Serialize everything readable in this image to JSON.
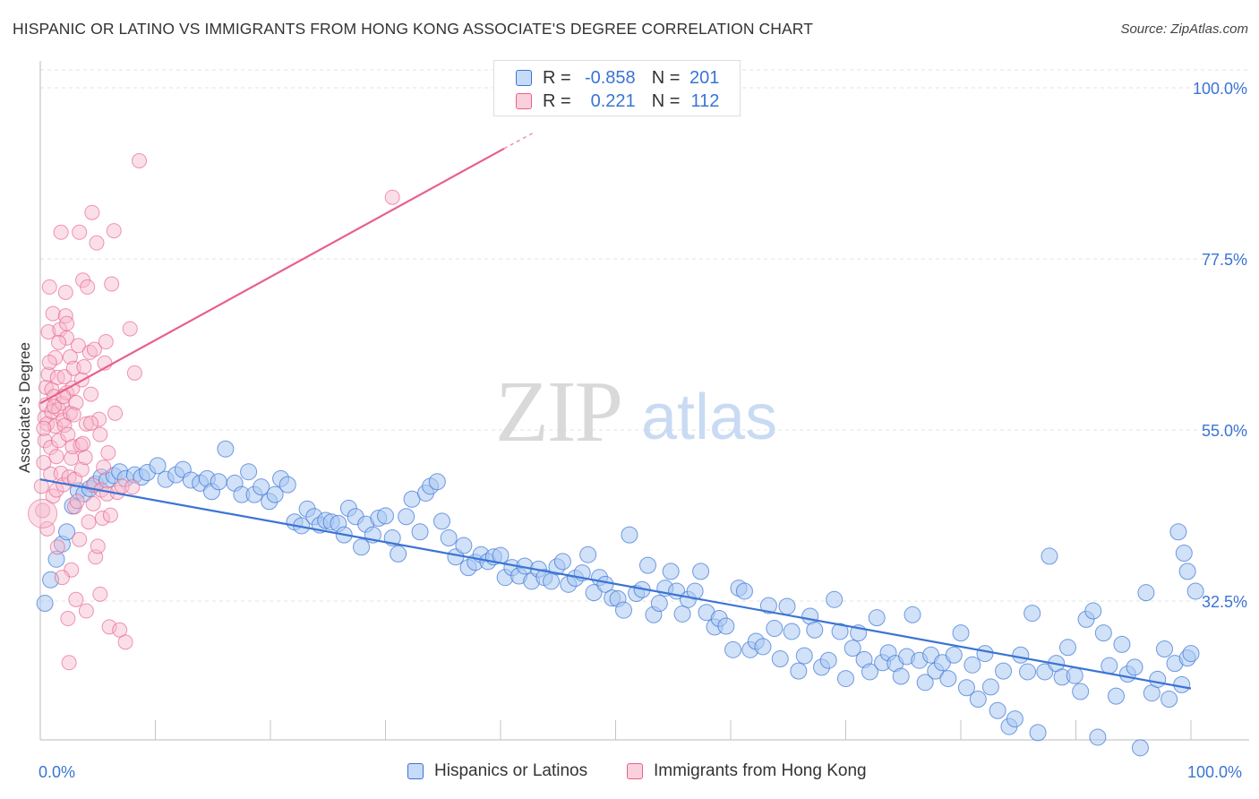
{
  "title": "HISPANIC OR LATINO VS IMMIGRANTS FROM HONG KONG ASSOCIATE'S DEGREE CORRELATION CHART",
  "source": "Source: ZipAtlas.com",
  "watermark": {
    "zip": "ZIP",
    "atlas": "atlas"
  },
  "colors": {
    "blue": "#3a74d4",
    "blue_fill": "#aac8f2",
    "pink": "#e8608a",
    "pink_fill": "#f6b7cb",
    "tick_text": "#3a74d4"
  },
  "legend": {
    "rows": [
      {
        "r_label": "R =",
        "r_value": "-0.858",
        "n_label": "N =",
        "n_value": "201"
      },
      {
        "r_label": "R =",
        "r_value": "0.221",
        "n_label": "N =",
        "n_value": "112"
      }
    ]
  },
  "bottom_legend": [
    "Hispanics or Latinos",
    "Immigrants from Hong Kong"
  ],
  "chart_data": {
    "type": "scatter",
    "ylabel": "Associate's Degree",
    "xlim": [
      0,
      100
    ],
    "ylim": [
      10,
      100
    ],
    "x_tick_labels": [
      "0.0%",
      "100.0%"
    ],
    "y_ticks": [
      {
        "value": 100.0,
        "label": "100.0%"
      },
      {
        "value": 77.5,
        "label": "77.5%"
      },
      {
        "value": 55.0,
        "label": "55.0%"
      },
      {
        "value": 32.5,
        "label": "32.5%"
      }
    ],
    "grid": true,
    "series": [
      {
        "name": "Hispanics or Latinos",
        "color": "#3a74d4",
        "trend": {
          "x": [
            0,
            100
          ],
          "y": [
            48.5,
            21.0
          ]
        },
        "points": [
          [
            0.4,
            32.2
          ],
          [
            0.9,
            35.3
          ],
          [
            1.4,
            38.0
          ],
          [
            1.9,
            40.0
          ],
          [
            2.3,
            41.6
          ],
          [
            2.8,
            45.0
          ],
          [
            3.3,
            47.0
          ],
          [
            3.8,
            46.6
          ],
          [
            4.3,
            47.3
          ],
          [
            4.8,
            47.9
          ],
          [
            5.3,
            48.8
          ],
          [
            5.8,
            48.4
          ],
          [
            6.4,
            49.0
          ],
          [
            6.9,
            49.5
          ],
          [
            7.4,
            48.6
          ],
          [
            8.2,
            49.1
          ],
          [
            8.8,
            48.8
          ],
          [
            9.3,
            49.4
          ],
          [
            10.2,
            50.3
          ],
          [
            10.9,
            48.5
          ],
          [
            11.8,
            49.1
          ],
          [
            12.4,
            49.8
          ],
          [
            13.1,
            48.4
          ],
          [
            13.9,
            48.0
          ],
          [
            14.5,
            48.6
          ],
          [
            14.9,
            46.9
          ],
          [
            15.5,
            48.2
          ],
          [
            16.1,
            52.5
          ],
          [
            16.9,
            48.0
          ],
          [
            17.5,
            46.5
          ],
          [
            18.1,
            49.5
          ],
          [
            18.6,
            46.5
          ],
          [
            19.2,
            47.5
          ],
          [
            19.9,
            45.6
          ],
          [
            20.4,
            46.5
          ],
          [
            20.9,
            48.6
          ],
          [
            21.5,
            47.8
          ],
          [
            22.1,
            42.9
          ],
          [
            22.7,
            42.4
          ],
          [
            23.2,
            44.6
          ],
          [
            23.8,
            43.6
          ],
          [
            24.3,
            42.5
          ],
          [
            24.8,
            43.1
          ],
          [
            25.3,
            42.9
          ],
          [
            25.9,
            42.7
          ],
          [
            26.4,
            41.2
          ],
          [
            26.8,
            44.7
          ],
          [
            27.4,
            43.6
          ],
          [
            27.9,
            39.6
          ],
          [
            28.3,
            42.6
          ],
          [
            28.9,
            41.2
          ],
          [
            29.4,
            43.4
          ],
          [
            30.0,
            43.7
          ],
          [
            30.6,
            40.8
          ],
          [
            31.1,
            38.7
          ],
          [
            31.8,
            43.6
          ],
          [
            32.3,
            45.9
          ],
          [
            33.0,
            41.6
          ],
          [
            33.5,
            46.7
          ],
          [
            33.9,
            47.6
          ],
          [
            34.5,
            48.2
          ],
          [
            34.9,
            43.0
          ],
          [
            35.5,
            40.8
          ],
          [
            36.1,
            38.3
          ],
          [
            36.8,
            39.8
          ],
          [
            37.2,
            36.9
          ],
          [
            37.8,
            37.6
          ],
          [
            38.3,
            38.6
          ],
          [
            38.9,
            37.7
          ],
          [
            39.4,
            38.3
          ],
          [
            40.0,
            38.5
          ],
          [
            40.4,
            35.6
          ],
          [
            41.0,
            36.9
          ],
          [
            41.6,
            35.8
          ],
          [
            42.1,
            37.1
          ],
          [
            42.7,
            35.1
          ],
          [
            43.3,
            36.7
          ],
          [
            43.8,
            35.6
          ],
          [
            44.4,
            35.1
          ],
          [
            44.9,
            37.0
          ],
          [
            45.4,
            37.7
          ],
          [
            45.9,
            34.7
          ],
          [
            46.5,
            35.5
          ],
          [
            47.1,
            36.2
          ],
          [
            47.6,
            38.6
          ],
          [
            48.1,
            33.6
          ],
          [
            48.6,
            35.6
          ],
          [
            49.1,
            34.7
          ],
          [
            49.7,
            32.9
          ],
          [
            50.2,
            32.8
          ],
          [
            50.7,
            31.3
          ],
          [
            51.2,
            41.2
          ],
          [
            51.8,
            33.5
          ],
          [
            52.3,
            34.0
          ],
          [
            52.8,
            37.2
          ],
          [
            53.3,
            30.7
          ],
          [
            53.8,
            32.2
          ],
          [
            54.3,
            34.2
          ],
          [
            54.8,
            36.4
          ],
          [
            55.3,
            33.8
          ],
          [
            55.8,
            30.8
          ],
          [
            56.3,
            32.7
          ],
          [
            56.9,
            33.8
          ],
          [
            57.4,
            36.4
          ],
          [
            57.9,
            31.0
          ],
          [
            58.6,
            29.1
          ],
          [
            59.0,
            30.2
          ],
          [
            59.6,
            29.2
          ],
          [
            60.2,
            26.1
          ],
          [
            60.7,
            34.2
          ],
          [
            61.2,
            33.8
          ],
          [
            61.7,
            26.1
          ],
          [
            62.2,
            27.2
          ],
          [
            62.8,
            26.5
          ],
          [
            63.3,
            31.9
          ],
          [
            63.8,
            28.9
          ],
          [
            64.3,
            24.9
          ],
          [
            64.9,
            31.8
          ],
          [
            65.3,
            28.5
          ],
          [
            65.9,
            23.3
          ],
          [
            66.4,
            25.3
          ],
          [
            66.9,
            30.5
          ],
          [
            67.3,
            28.7
          ],
          [
            67.9,
            23.8
          ],
          [
            68.5,
            24.7
          ],
          [
            69.0,
            32.7
          ],
          [
            69.5,
            28.5
          ],
          [
            70.0,
            22.3
          ],
          [
            70.6,
            26.3
          ],
          [
            71.1,
            28.3
          ],
          [
            71.6,
            24.8
          ],
          [
            72.1,
            23.2
          ],
          [
            72.7,
            30.3
          ],
          [
            73.2,
            24.4
          ],
          [
            73.7,
            25.7
          ],
          [
            74.3,
            24.3
          ],
          [
            74.8,
            22.6
          ],
          [
            75.3,
            25.2
          ],
          [
            75.8,
            30.7
          ],
          [
            76.4,
            24.7
          ],
          [
            76.9,
            21.8
          ],
          [
            77.4,
            25.4
          ],
          [
            77.8,
            23.3
          ],
          [
            78.4,
            24.4
          ],
          [
            78.9,
            22.3
          ],
          [
            79.4,
            25.4
          ],
          [
            80.0,
            28.3
          ],
          [
            80.5,
            21.1
          ],
          [
            81.0,
            24.1
          ],
          [
            81.5,
            19.6
          ],
          [
            82.1,
            25.6
          ],
          [
            82.6,
            21.2
          ],
          [
            83.2,
            18.1
          ],
          [
            83.7,
            23.3
          ],
          [
            84.2,
            16.0
          ],
          [
            84.7,
            17.0
          ],
          [
            85.2,
            25.4
          ],
          [
            85.8,
            23.2
          ],
          [
            86.2,
            30.9
          ],
          [
            86.7,
            15.2
          ],
          [
            87.3,
            23.2
          ],
          [
            87.7,
            38.4
          ],
          [
            88.3,
            24.3
          ],
          [
            88.8,
            22.5
          ],
          [
            89.3,
            26.4
          ],
          [
            89.9,
            22.7
          ],
          [
            90.4,
            20.6
          ],
          [
            90.9,
            30.1
          ],
          [
            91.5,
            31.2
          ],
          [
            91.9,
            14.6
          ],
          [
            92.4,
            28.3
          ],
          [
            92.9,
            24.0
          ],
          [
            93.5,
            20.0
          ],
          [
            94.0,
            26.8
          ],
          [
            94.5,
            22.9
          ],
          [
            95.1,
            23.8
          ],
          [
            95.6,
            13.2
          ],
          [
            96.1,
            33.6
          ],
          [
            96.6,
            20.4
          ],
          [
            97.1,
            22.2
          ],
          [
            97.7,
            26.2
          ],
          [
            98.1,
            19.6
          ],
          [
            98.6,
            24.3
          ],
          [
            99.2,
            21.5
          ],
          [
            99.7,
            25.0
          ],
          [
            100.0,
            25.6
          ],
          [
            98.9,
            41.6
          ],
          [
            99.4,
            38.8
          ],
          [
            100.4,
            33.8
          ],
          [
            99.7,
            36.4
          ]
        ]
      },
      {
        "name": "Immigrants from Hong Kong",
        "color": "#e8608a",
        "trend": {
          "x": [
            0,
            40.3
          ],
          "y": [
            58.5,
            92.0
          ]
        },
        "trend_dashed": {
          "x": [
            40.3,
            43.0
          ],
          "y": [
            92.0,
            94.2
          ]
        },
        "points": [
          [
            0.1,
            47.6
          ],
          [
            0.2,
            44.4
          ],
          [
            0.3,
            50.7
          ],
          [
            0.4,
            53.6
          ],
          [
            0.4,
            56.6
          ],
          [
            0.5,
            58.3
          ],
          [
            0.5,
            60.6
          ],
          [
            0.6,
            55.8
          ],
          [
            0.7,
            62.3
          ],
          [
            0.7,
            67.9
          ],
          [
            0.8,
            73.8
          ],
          [
            0.9,
            49.2
          ],
          [
            0.9,
            52.7
          ],
          [
            1.0,
            60.3
          ],
          [
            1.0,
            57.4
          ],
          [
            1.1,
            70.3
          ],
          [
            1.1,
            46.3
          ],
          [
            1.2,
            59.4
          ],
          [
            1.3,
            64.5
          ],
          [
            1.3,
            55.5
          ],
          [
            1.4,
            47.1
          ],
          [
            1.4,
            51.5
          ],
          [
            1.5,
            61.9
          ],
          [
            1.6,
            57.7
          ],
          [
            1.6,
            53.6
          ],
          [
            1.7,
            68.2
          ],
          [
            1.8,
            49.3
          ],
          [
            1.8,
            81.0
          ],
          [
            1.9,
            58.5
          ],
          [
            2.0,
            56.3
          ],
          [
            2.0,
            47.8
          ],
          [
            2.1,
            55.6
          ],
          [
            2.1,
            62.0
          ],
          [
            2.2,
            73.1
          ],
          [
            2.2,
            70.0
          ],
          [
            2.3,
            59.9
          ],
          [
            2.3,
            67.1
          ],
          [
            2.4,
            54.4
          ],
          [
            2.5,
            48.8
          ],
          [
            2.6,
            64.6
          ],
          [
            2.6,
            57.2
          ],
          [
            2.7,
            51.3
          ],
          [
            2.8,
            60.5
          ],
          [
            2.8,
            52.8
          ],
          [
            2.9,
            63.1
          ],
          [
            3.0,
            48.5
          ],
          [
            3.0,
            44.9
          ],
          [
            3.1,
            58.6
          ],
          [
            3.2,
            45.6
          ],
          [
            3.3,
            66.1
          ],
          [
            3.4,
            81.0
          ],
          [
            3.5,
            53.0
          ],
          [
            3.6,
            61.6
          ],
          [
            3.6,
            49.8
          ],
          [
            3.7,
            74.7
          ],
          [
            3.8,
            63.3
          ],
          [
            3.9,
            51.4
          ],
          [
            4.0,
            55.8
          ],
          [
            4.1,
            73.8
          ],
          [
            4.2,
            42.9
          ],
          [
            4.3,
            65.2
          ],
          [
            4.4,
            59.7
          ],
          [
            4.5,
            83.6
          ],
          [
            4.6,
            47.7
          ],
          [
            4.7,
            65.6
          ],
          [
            4.8,
            38.3
          ],
          [
            4.9,
            79.6
          ],
          [
            5.0,
            39.7
          ],
          [
            5.1,
            56.4
          ],
          [
            5.2,
            54.4
          ],
          [
            5.3,
            47.1
          ],
          [
            5.4,
            43.4
          ],
          [
            5.5,
            50.1
          ],
          [
            5.6,
            63.8
          ],
          [
            5.7,
            66.6
          ],
          [
            5.8,
            46.6
          ],
          [
            6.0,
            29.1
          ],
          [
            6.2,
            74.2
          ],
          [
            6.4,
            81.2
          ],
          [
            6.5,
            57.2
          ],
          [
            6.7,
            46.8
          ],
          [
            6.9,
            28.7
          ],
          [
            7.1,
            47.6
          ],
          [
            7.4,
            27.1
          ],
          [
            7.8,
            68.3
          ],
          [
            8.0,
            47.5
          ],
          [
            8.2,
            62.5
          ],
          [
            8.6,
            90.4
          ],
          [
            3.1,
            32.7
          ],
          [
            2.4,
            30.2
          ],
          [
            1.5,
            39.6
          ],
          [
            2.7,
            36.6
          ],
          [
            4.0,
            31.2
          ],
          [
            5.2,
            33.4
          ],
          [
            6.1,
            43.8
          ],
          [
            0.6,
            42.0
          ],
          [
            1.9,
            35.6
          ],
          [
            2.5,
            24.4
          ],
          [
            3.4,
            40.6
          ],
          [
            4.6,
            45.3
          ],
          [
            0.3,
            55.2
          ],
          [
            1.2,
            58.1
          ],
          [
            2.0,
            59.4
          ],
          [
            2.9,
            57.0
          ],
          [
            3.7,
            53.2
          ],
          [
            4.4,
            55.9
          ],
          [
            5.9,
            52.0
          ],
          [
            0.8,
            63.9
          ],
          [
            1.6,
            66.5
          ],
          [
            2.3,
            69.0
          ],
          [
            30.6,
            85.6
          ]
        ]
      }
    ]
  }
}
